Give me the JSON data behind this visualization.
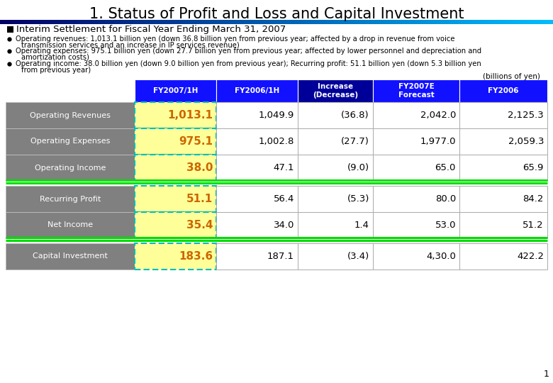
{
  "title": "1. Status of Profit and Loss and Capital Investment",
  "subtitle": "Interim Settlement for Fiscal Year Ending March 31, 2007",
  "bullet1_line1": "Operating revenues: 1,013.1 billion yen (down 36.8 billion yen from previous year; affected by a drop in revenue from voice",
  "bullet1_line2": "transmission services and an increase in IP services revenue)",
  "bullet2_line1": "Operating expenses: 975.1 billion yen (down 27.7 billion yen from previous year; affected by lower personnel and depreciation and",
  "bullet2_line2": "amortization costs)",
  "bullet3_line1": "Operating income: 38.0 billion yen (down 9.0 billion yen from previous year); Recurring profit: 51.1 billion yen (down 5.3 billion yen",
  "bullet3_line2": "from previous year)",
  "units_note": "(billions of yen)",
  "col_headers": [
    "FY2007/1H",
    "FY2006/1H",
    "Increase\n(Decrease)",
    "FY2007E\nForecast",
    "FY2006"
  ],
  "rows": [
    {
      "label": "Operating Revenues",
      "values": [
        "1,013.1",
        "1,049.9",
        "(36.8)",
        "2,042.0",
        "2,125.3"
      ]
    },
    {
      "label": "Operating Expenses",
      "values": [
        "975.1",
        "1,002.8",
        "(27.7)",
        "1,977.0",
        "2,059.3"
      ]
    },
    {
      "label": "Operating Income",
      "values": [
        "38.0",
        "47.1",
        "(9.0)",
        "65.0",
        "65.9"
      ]
    },
    {
      "label": "Recurring Profit",
      "values": [
        "51.1",
        "56.4",
        "(5.3)",
        "80.0",
        "84.2"
      ]
    },
    {
      "label": "Net Income",
      "values": [
        "35.4",
        "34.0",
        "1.4",
        "53.0",
        "51.2"
      ]
    },
    {
      "label": "Capital Investment",
      "values": [
        "183.6",
        "187.1",
        "(3.4)",
        "4,30.0",
        "422.2"
      ]
    }
  ],
  "label_bg": "#808080",
  "label_fg": "#FFFFFF",
  "fy2007_cell_bg": "#FFFF99",
  "fy2007_cell_border": "#00BBBB",
  "white_cell_bg": "#FFFFFF",
  "separator_color": "#00DD00",
  "header_col_colors": [
    "#1111FF",
    "#1111FF",
    "#000099",
    "#1111FF",
    "#1111FF"
  ],
  "data_text_color": "#000000",
  "fy_text_color": "#CC6600",
  "page_number": "1",
  "background_color": "#FFFFFF"
}
